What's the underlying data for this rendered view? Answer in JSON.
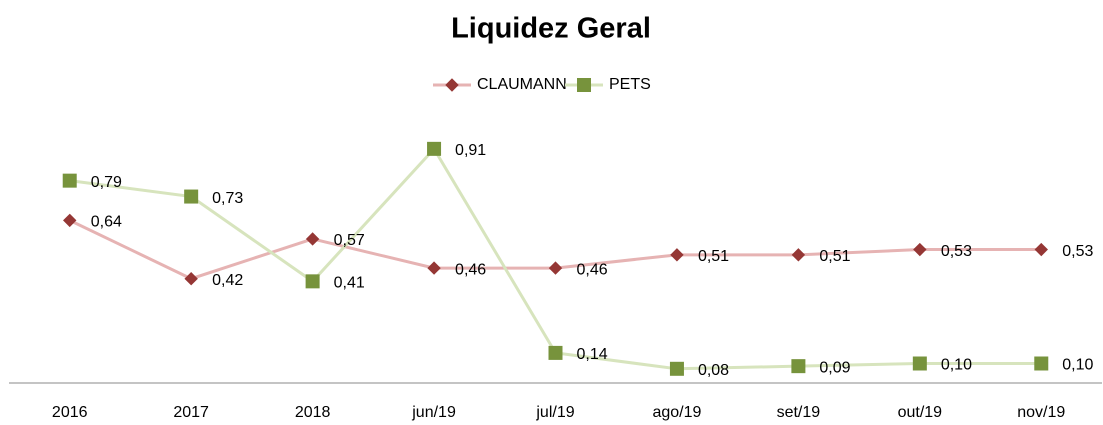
{
  "chart_data": {
    "type": "line",
    "title": "Liquidez Geral",
    "categories": [
      "2016",
      "2017",
      "2018",
      "jun/19",
      "jul/19",
      "ago/19",
      "set/19",
      "out/19",
      "nov/19"
    ],
    "series": [
      {
        "name": "CLAUMANN",
        "color": "#e6b3b3",
        "marker_color": "#953735",
        "marker": "diamond",
        "values": [
          0.64,
          0.42,
          0.57,
          0.46,
          0.46,
          0.51,
          0.51,
          0.53,
          0.53
        ],
        "value_labels": [
          "0,64",
          "0,42",
          "0,57",
          "0,46",
          "0,46",
          "0,51",
          "0,51",
          "0,53",
          "0,53"
        ]
      },
      {
        "name": "PETS",
        "color": "#d7e4bd",
        "marker_color": "#77933c",
        "marker": "square",
        "values": [
          0.79,
          0.73,
          0.41,
          0.91,
          0.14,
          0.08,
          0.09,
          0.1,
          0.1
        ],
        "value_labels": [
          "0,79",
          "0,73",
          "0,41",
          "0,91",
          "0,14",
          "0,08",
          "0,09",
          "0,10",
          "0,10"
        ]
      }
    ],
    "ylim": [
      0,
      1
    ],
    "legend": "top"
  }
}
